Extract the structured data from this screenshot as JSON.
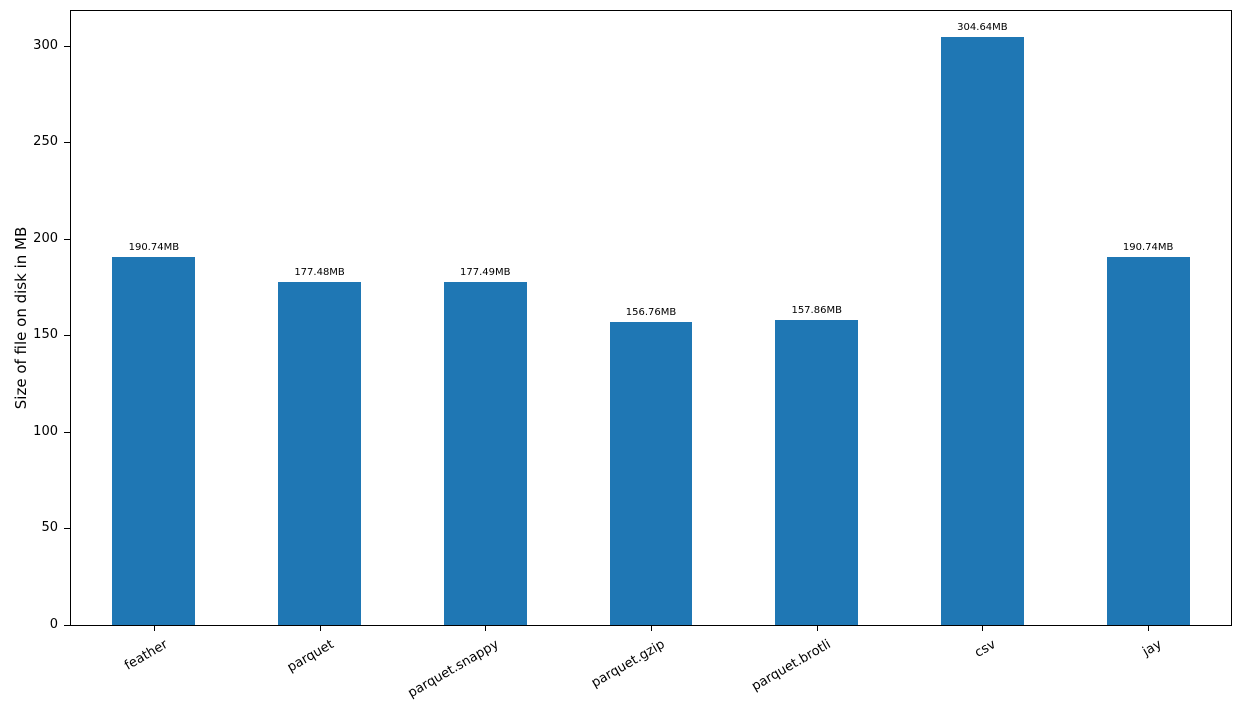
{
  "chart_data": {
    "type": "bar",
    "title": "",
    "xlabel": "",
    "ylabel": "Size of file on disk in MB",
    "categories": [
      "feather",
      "parquet",
      "parquet.snappy",
      "parquet.gzip",
      "parquet.brotli",
      "csv",
      "jay"
    ],
    "values": [
      190.74,
      177.48,
      177.49,
      156.76,
      157.86,
      304.64,
      190.74
    ],
    "bar_labels": [
      "190.74MB",
      "177.48MB",
      "177.49MB",
      "156.76MB",
      "157.86MB",
      "304.64MB",
      "190.74MB"
    ],
    "unit": "MB",
    "yticks": [
      0,
      50,
      100,
      150,
      200,
      250,
      300
    ],
    "ylim": [
      0,
      318
    ],
    "bar_color": "#1f77b4",
    "axis_color": "#000000",
    "text_color": "#000000",
    "bar_width_fraction": 0.5,
    "x_tick_rotation_deg": 30,
    "grid": false,
    "legend_position": "none"
  }
}
